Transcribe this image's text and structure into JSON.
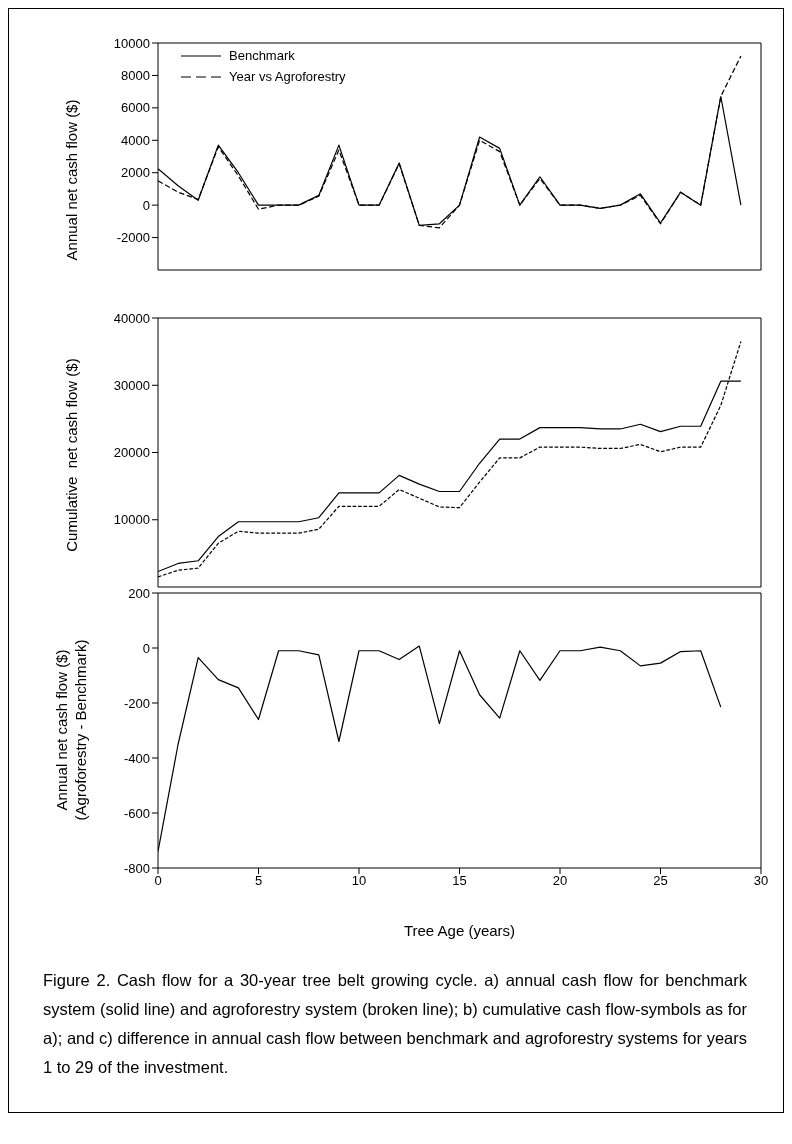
{
  "chart_data": [
    {
      "type": "line",
      "ylabel": "Annual net cash flow ($)",
      "x": [
        0,
        1,
        2,
        3,
        4,
        5,
        6,
        7,
        8,
        9,
        10,
        11,
        12,
        13,
        14,
        15,
        16,
        17,
        18,
        19,
        20,
        21,
        22,
        23,
        24,
        25,
        26,
        27,
        28,
        29
      ],
      "xlim": [
        0,
        30
      ],
      "xticks": [
        0,
        5,
        10,
        15,
        20,
        25,
        30
      ],
      "ylim": [
        -4000,
        10000
      ],
      "yticks": [
        -2000,
        0,
        2000,
        4000,
        6000,
        8000,
        10000
      ],
      "tick_labels": "y",
      "legend": "top left",
      "marker": "none",
      "grid": false,
      "series": [
        {
          "name": "Benchmark",
          "color": "#000000",
          "line_style": "solid",
          "values": [
            2250,
            1200,
            300,
            3700,
            2000,
            0,
            0,
            0,
            600,
            3700,
            0,
            0,
            2600,
            -1250,
            -1150,
            0,
            4200,
            3500,
            0,
            1750,
            0,
            0,
            -200,
            0,
            700,
            -1100,
            800,
            0,
            6700,
            0
          ]
        },
        {
          "name": "Year vs Agroforestry",
          "color": "#000000",
          "line_style": "dashed",
          "values": [
            1500,
            800,
            350,
            3600,
            1800,
            -250,
            0,
            0,
            550,
            3400,
            0,
            0,
            2550,
            -1250,
            -1400,
            0,
            4000,
            3300,
            0,
            1650,
            0,
            0,
            -200,
            0,
            600,
            -1150,
            800,
            0,
            6700,
            9200
          ]
        }
      ]
    },
    {
      "type": "line",
      "ylabel": "Cumulative  net cash flow ($)",
      "x": [
        0,
        1,
        2,
        3,
        4,
        5,
        6,
        7,
        8,
        9,
        10,
        11,
        12,
        13,
        14,
        15,
        16,
        17,
        18,
        19,
        20,
        21,
        22,
        23,
        24,
        25,
        26,
        27,
        28,
        29
      ],
      "xlim": [
        0,
        30
      ],
      "xticks": [
        0,
        5,
        10,
        15,
        20,
        25,
        30
      ],
      "ylim": [
        0,
        40000
      ],
      "yticks": [
        10000,
        20000,
        30000,
        40000
      ],
      "tick_labels": "y",
      "marker": "none",
      "grid": false,
      "series": [
        {
          "color": "#000000",
          "line_style": "solid",
          "values": [
            2300,
            3500,
            3900,
            7500,
            9700,
            9700,
            9700,
            9700,
            10300,
            14000,
            14000,
            14000,
            16600,
            15300,
            14200,
            14200,
            18400,
            22000,
            22000,
            23700,
            23700,
            23700,
            23500,
            23500,
            24200,
            23100,
            23900,
            23900,
            30600,
            30600
          ]
        },
        {
          "color": "#000000",
          "line_style": "dashed",
          "values": [
            1500,
            2500,
            2800,
            6500,
            8300,
            8000,
            8000,
            8000,
            8600,
            12000,
            12000,
            12000,
            14500,
            13200,
            11900,
            11800,
            15600,
            19200,
            19200,
            20800,
            20800,
            20800,
            20600,
            20600,
            21200,
            20100,
            20800,
            20800,
            27000,
            36500
          ]
        }
      ]
    },
    {
      "type": "line",
      "ylabel": "Annual net cash flow ($)\n(Agroforestry - Benchmark)",
      "xlabel": "Tree Age (years)",
      "x": [
        0,
        1,
        2,
        3,
        4,
        5,
        6,
        7,
        8,
        9,
        10,
        11,
        12,
        13,
        14,
        15,
        16,
        17,
        18,
        19,
        20,
        21,
        22,
        23,
        24,
        25,
        26,
        27,
        28
      ],
      "xlim": [
        0,
        30
      ],
      "xticks": [
        0,
        5,
        10,
        15,
        20,
        25,
        30
      ],
      "ylim": [
        -800,
        200
      ],
      "yticks": [
        -800,
        -600,
        -400,
        -200,
        0,
        200
      ],
      "marker": "none",
      "grid": false,
      "series": [
        {
          "color": "#000000",
          "line_style": "solid",
          "values": [
            -740,
            -350,
            -35,
            -115,
            -145,
            -260,
            -10,
            -10,
            -25,
            -340,
            -10,
            -10,
            -42,
            7,
            -275,
            -10,
            -170,
            -255,
            -10,
            -118,
            -10,
            -10,
            3,
            -10,
            -65,
            -55,
            -13,
            -10,
            -215
          ]
        }
      ],
      "annotations": [
        "Figure 2. Cash flow for a 30-year tree belt growing cycle. a) annual cash flow for benchmark system (solid line) and agroforestry system (broken line); b) cumulative cash flow-symbols as for a); and c) difference in annual cash flow between benchmark and agroforestry systems for years 1 to 29 of the investment."
      ]
    }
  ]
}
